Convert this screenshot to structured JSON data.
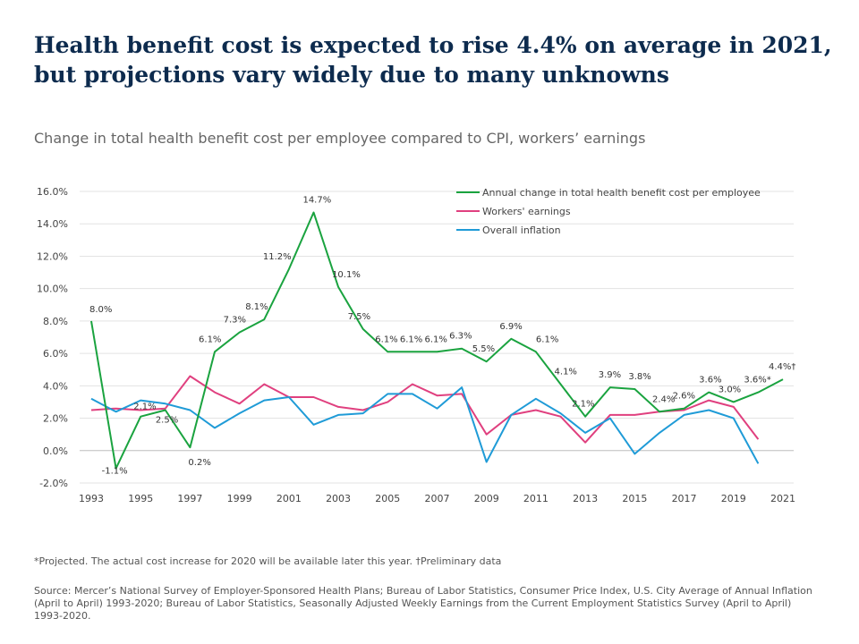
{
  "title_line1": "Health benefit cost is expected to rise 4.4% on average in 2021,",
  "title_line2": "but projections vary widely due to many unknowns",
  "subtitle": "Change in total health benefit cost per employee compared to CPI, workers’ earnings",
  "footnote": "*Projected. The actual cost increase for 2020 will be available later this year. †Preliminary data",
  "source": "Source: Mercer’s National Survey of Employer-Sponsored Health Plans; Bureau of Labor Statistics, Consumer Price Index, U.S. City Average of Annual Inflation (April to April) 1993-2020; Bureau of Labor Statistics, Seasonally Adjusted Weekly Earnings from the Current Employment Statistics Survey (April to April) 1993-2020.",
  "chart_data": {
    "type": "line",
    "x": [
      1993,
      1994,
      1995,
      1996,
      1997,
      1998,
      1999,
      2000,
      2001,
      2002,
      2003,
      2004,
      2005,
      2006,
      2007,
      2008,
      2009,
      2010,
      2011,
      2012,
      2013,
      2014,
      2015,
      2016,
      2017,
      2018,
      2019,
      2020,
      2021
    ],
    "x_tick_labels": [
      "1993",
      "1995",
      "1997",
      "1999",
      "2001",
      "2003",
      "2005",
      "2007",
      "2009",
      "2011",
      "2013",
      "2015",
      "2017",
      "2019",
      "2021"
    ],
    "y_tick_labels": [
      "16.0%",
      "14.0%",
      "12.0%",
      "10.0%",
      "8.0%",
      "6.0%",
      "4.0%",
      "2.0%",
      "0.0%",
      "-2.0%"
    ],
    "ylim": [
      -2,
      16
    ],
    "grid": "horizontal",
    "legend_position": "top-right",
    "series": [
      {
        "name": "Annual change in total health benefit cost per employee",
        "color": "#1aa33f",
        "values": [
          8.0,
          -1.1,
          2.1,
          2.5,
          0.2,
          6.1,
          7.3,
          8.1,
          11.2,
          14.7,
          10.1,
          7.5,
          6.1,
          6.1,
          6.1,
          6.3,
          5.5,
          6.9,
          6.1,
          4.1,
          2.1,
          3.9,
          3.8,
          2.4,
          2.6,
          3.6,
          3.0,
          3.6,
          4.4
        ],
        "data_labels": [
          "8.0%",
          "-1.1%",
          "2.1%",
          "2.5%",
          "0.2%",
          "6.1%",
          "7.3%",
          "8.1%",
          "11.2%",
          "14.7%",
          "10.1%",
          "7.5%",
          "6.1%",
          "6.1%",
          "6.1%",
          "6.3%",
          "5.5%",
          "6.9%",
          "6.1%",
          "4.1%",
          "2.1%",
          "3.9%",
          "3.8%",
          "2.4%",
          "2.6%",
          "3.6%",
          "3.0%",
          "3.6%*",
          "4.4%†"
        ]
      },
      {
        "name": "Workers' earnings",
        "color": "#e0407f",
        "values": [
          2.5,
          2.6,
          2.5,
          2.6,
          4.6,
          3.6,
          2.9,
          4.1,
          3.3,
          3.3,
          2.7,
          2.5,
          3.0,
          4.1,
          3.4,
          3.5,
          1.0,
          2.2,
          2.5,
          2.1,
          0.5,
          2.2,
          2.2,
          2.4,
          2.5,
          3.1,
          2.7,
          0.7,
          null
        ]
      },
      {
        "name": "Overall inflation",
        "color": "#1f9bd7",
        "values": [
          3.2,
          2.4,
          3.1,
          2.9,
          2.5,
          1.4,
          2.3,
          3.1,
          3.3,
          1.6,
          2.2,
          2.3,
          3.5,
          3.5,
          2.6,
          3.9,
          -0.7,
          2.2,
          3.2,
          2.3,
          1.1,
          2.0,
          -0.2,
          1.1,
          2.2,
          2.5,
          2.0,
          -0.8,
          null
        ]
      }
    ]
  }
}
